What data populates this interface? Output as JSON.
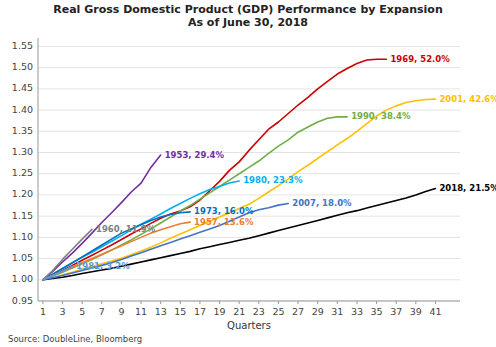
{
  "chart_data": {
    "type": "line",
    "title": "Real Gross Domestic Product (GDP) Performance by Expansion\nAs of June 30, 2018",
    "x_label": "Quarters",
    "source": "Source: DoubleLine, Bloomberg",
    "x": [
      1,
      2,
      3,
      4,
      5,
      6,
      7,
      8,
      9,
      10,
      11,
      12,
      13,
      14,
      15,
      16,
      17,
      18,
      19,
      20,
      21,
      22,
      23,
      24,
      25,
      26,
      27,
      28,
      29,
      30,
      31,
      32,
      33,
      34,
      35,
      36,
      37,
      38,
      39,
      40,
      41
    ],
    "series": [
      {
        "name": "1969, 52.0%",
        "color": "#cc0000",
        "values": [
          1.0,
          1.011,
          1.022,
          1.034,
          1.046,
          1.058,
          1.07,
          1.082,
          1.095,
          1.108,
          1.12,
          1.133,
          1.145,
          1.155,
          1.162,
          1.172,
          1.188,
          1.21,
          1.232,
          1.258,
          1.278,
          1.305,
          1.33,
          1.355,
          1.372,
          1.392,
          1.412,
          1.43,
          1.45,
          1.468,
          1.485,
          1.498,
          1.51,
          1.518,
          1.52,
          1.52,
          null,
          null,
          null,
          null,
          null
        ]
      },
      {
        "name": "2001, 42.6%",
        "color": "#ffc000",
        "values": [
          1.0,
          1.005,
          1.012,
          1.018,
          1.025,
          1.031,
          1.038,
          1.044,
          1.051,
          1.059,
          1.068,
          1.077,
          1.087,
          1.098,
          1.108,
          1.118,
          1.128,
          1.138,
          1.148,
          1.158,
          1.168,
          1.178,
          1.192,
          1.207,
          1.222,
          1.238,
          1.255,
          1.27,
          1.286,
          1.302,
          1.318,
          1.333,
          1.35,
          1.368,
          1.386,
          1.4,
          1.41,
          1.418,
          1.422,
          1.425,
          1.426
        ]
      },
      {
        "name": "1990, 38.4%",
        "color": "#70ad47",
        "values": [
          1.0,
          1.009,
          1.018,
          1.028,
          1.038,
          1.048,
          1.059,
          1.07,
          1.082,
          1.094,
          1.107,
          1.12,
          1.134,
          1.148,
          1.162,
          1.175,
          1.19,
          1.205,
          1.22,
          1.235,
          1.25,
          1.265,
          1.28,
          1.298,
          1.315,
          1.33,
          1.348,
          1.36,
          1.372,
          1.381,
          1.384,
          1.384,
          null,
          null,
          null,
          null,
          null,
          null,
          null,
          null,
          null
        ]
      },
      {
        "name": "1953, 29.4%",
        "color": "#7030a0",
        "values": [
          1.0,
          1.02,
          1.042,
          1.063,
          1.086,
          1.11,
          1.135,
          1.158,
          1.182,
          1.207,
          1.228,
          1.265,
          1.294,
          null,
          null,
          null,
          null,
          null,
          null,
          null,
          null,
          null,
          null,
          null,
          null,
          null,
          null,
          null,
          null,
          null,
          null,
          null,
          null,
          null,
          null,
          null,
          null,
          null,
          null,
          null,
          null
        ]
      },
      {
        "name": "1980, 23.3%",
        "color": "#00b0f0",
        "values": [
          1.0,
          1.013,
          1.026,
          1.04,
          1.053,
          1.065,
          1.078,
          1.091,
          1.104,
          1.118,
          1.131,
          1.143,
          1.155,
          1.168,
          1.18,
          1.192,
          1.203,
          1.213,
          1.22,
          1.228,
          1.233,
          null,
          null,
          null,
          null,
          null,
          null,
          null,
          null,
          null,
          null,
          null,
          null,
          null,
          null,
          null,
          null,
          null,
          null,
          null,
          null
        ]
      },
      {
        "name": "2018, 21.5%",
        "color": "#000000",
        "values": [
          1.0,
          1.003,
          1.006,
          1.01,
          1.015,
          1.019,
          1.023,
          1.027,
          1.032,
          1.037,
          1.042,
          1.047,
          1.052,
          1.057,
          1.062,
          1.067,
          1.073,
          1.078,
          1.083,
          1.088,
          1.093,
          1.098,
          1.104,
          1.11,
          1.116,
          1.122,
          1.128,
          1.134,
          1.14,
          1.146,
          1.152,
          1.158,
          1.163,
          1.169,
          1.175,
          1.181,
          1.187,
          1.193,
          1.2,
          1.208,
          1.215
        ]
      },
      {
        "name": "2007, 18.0%",
        "color": "#4472c4",
        "values": [
          1.0,
          1.005,
          1.01,
          1.016,
          1.022,
          1.028,
          1.034,
          1.04,
          1.048,
          1.056,
          1.064,
          1.072,
          1.08,
          1.088,
          1.096,
          1.104,
          1.112,
          1.12,
          1.128,
          1.138,
          1.148,
          1.158,
          1.165,
          1.17,
          1.176,
          1.18,
          null,
          null,
          null,
          null,
          null,
          null,
          null,
          null,
          null,
          null,
          null,
          null,
          null,
          null,
          null
        ]
      },
      {
        "name": "1973, 16.0%",
        "color": "#0070c0",
        "values": [
          1.0,
          1.013,
          1.027,
          1.04,
          1.054,
          1.068,
          1.082,
          1.096,
          1.11,
          1.12,
          1.13,
          1.14,
          1.148,
          1.154,
          1.158,
          1.16,
          null,
          null,
          null,
          null,
          null,
          null,
          null,
          null,
          null,
          null,
          null,
          null,
          null,
          null,
          null,
          null,
          null,
          null,
          null,
          null,
          null,
          null,
          null,
          null,
          null
        ]
      },
      {
        "name": "1957, 13.6%",
        "color": "#ed7d31",
        "values": [
          1.0,
          1.01,
          1.02,
          1.03,
          1.04,
          1.05,
          1.06,
          1.07,
          1.08,
          1.09,
          1.1,
          1.11,
          1.118,
          1.125,
          1.132,
          1.136,
          null,
          null,
          null,
          null,
          null,
          null,
          null,
          null,
          null,
          null,
          null,
          null,
          null,
          null,
          null,
          null,
          null,
          null,
          null,
          null,
          null,
          null,
          null,
          null,
          null
        ]
      },
      {
        "name": "1960, 11.9%",
        "color": "#808080",
        "values": [
          1.0,
          1.022,
          1.048,
          1.072,
          1.096,
          1.119,
          null,
          null,
          null,
          null,
          null,
          null,
          null,
          null,
          null,
          null,
          null,
          null,
          null,
          null,
          null,
          null,
          null,
          null,
          null,
          null,
          null,
          null,
          null,
          null,
          null,
          null,
          null,
          null,
          null,
          null,
          null,
          null,
          null,
          null,
          null
        ]
      },
      {
        "name": "1981, 3.2%",
        "color": "#5b9bd5",
        "values": [
          1.0,
          1.01,
          1.02,
          1.032,
          null,
          null,
          null,
          null,
          null,
          null,
          null,
          null,
          null,
          null,
          null,
          null,
          null,
          null,
          null,
          null,
          null,
          null,
          null,
          null,
          null,
          null,
          null,
          null,
          null,
          null,
          null,
          null,
          null,
          null,
          null,
          null,
          null,
          null,
          null,
          null,
          null
        ]
      }
    ],
    "xlim": [
      0.5,
      43.5
    ],
    "ylim": [
      0.95,
      1.57
    ],
    "xticks": [
      1,
      3,
      5,
      7,
      9,
      11,
      13,
      15,
      17,
      19,
      21,
      23,
      25,
      27,
      29,
      31,
      33,
      35,
      37,
      39,
      41
    ],
    "yticks": [
      0.95,
      {
        "value": 1.0,
        "label": "1.00"
      },
      1.05,
      {
        "value": 1.1,
        "label": "1.10"
      },
      1.15,
      {
        "value": 1.2,
        "label": "1.20"
      },
      1.25,
      {
        "value": 1.3,
        "label": "1.30"
      },
      1.35,
      {
        "value": 1.4,
        "label": "1.40"
      },
      1.45,
      {
        "value": 1.5,
        "label": "1.50"
      },
      1.55
    ],
    "grid": true
  }
}
